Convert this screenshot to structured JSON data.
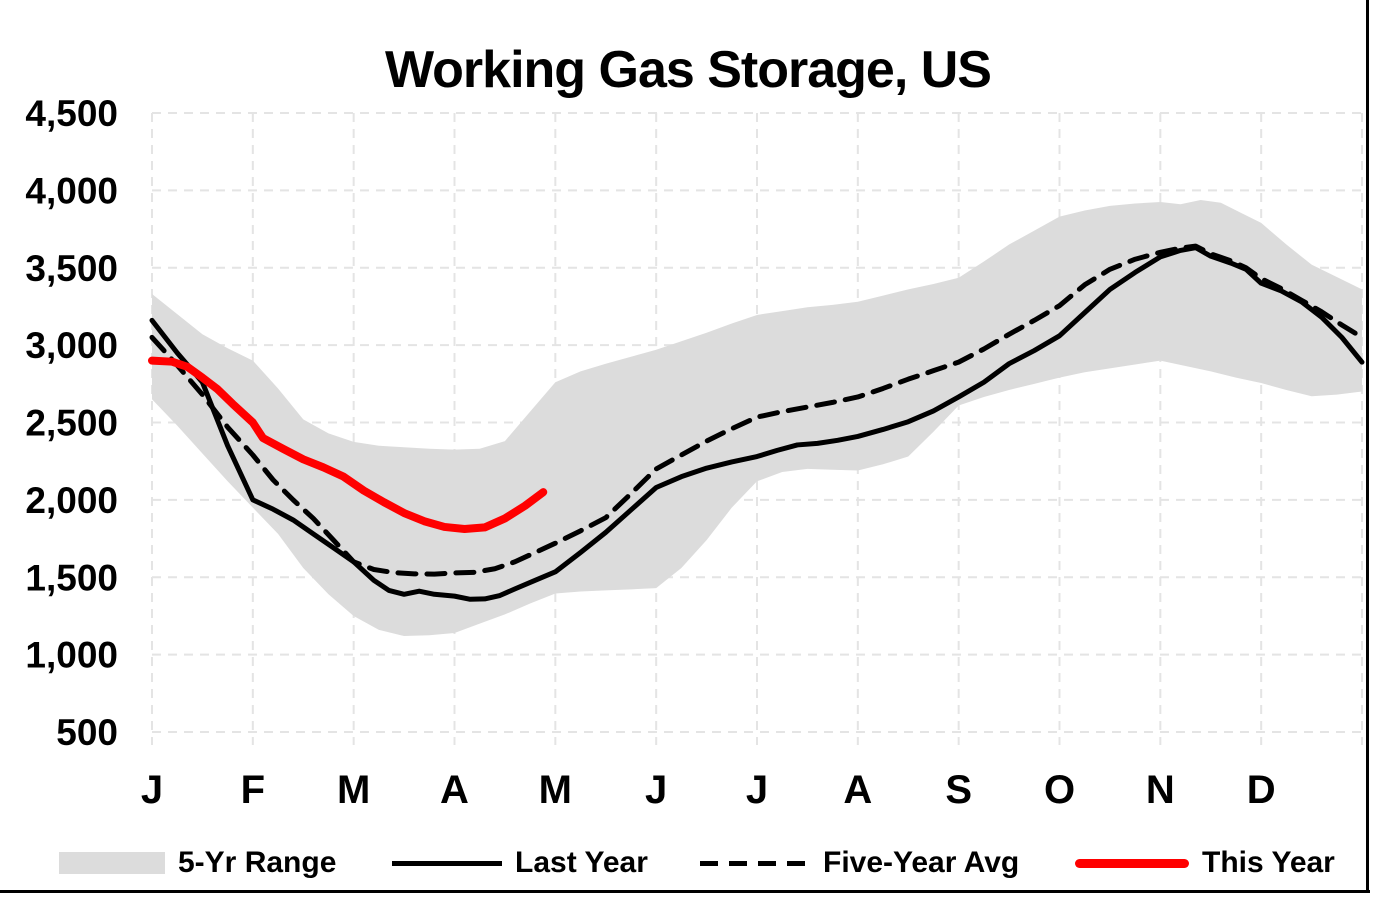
{
  "chart_data": {
    "type": "line",
    "title": "Working Gas Storage, US",
    "x_axis": {
      "months": [
        "J",
        "F",
        "M",
        "A",
        "M",
        "J",
        "J",
        "A",
        "S",
        "O",
        "N",
        "D"
      ],
      "gridlines": 13
    },
    "y_axis": {
      "min": 500,
      "max": 4500,
      "step": 500,
      "tick_labels": [
        "500",
        "1,000",
        "1,500",
        "2,000",
        "2,500",
        "3,000",
        "3,500",
        "4,000",
        "4,500"
      ]
    },
    "grid_style": "light-dashed",
    "legend": {
      "position": "bottom",
      "items": [
        {
          "label": "5-Yr Range",
          "swatch": "band",
          "color": "#dcdcdc"
        },
        {
          "label": "Last Year",
          "swatch": "solid-line",
          "color": "#000000"
        },
        {
          "label": "Five-Year Avg",
          "swatch": "dashed-line",
          "color": "#000000"
        },
        {
          "label": "This Year",
          "swatch": "thick-line",
          "color": "#ff0000"
        }
      ]
    },
    "series": [
      {
        "name": "5-Yr Range",
        "kind": "band",
        "color": "#dcdcdc",
        "upper": [
          [
            0,
            3330
          ],
          [
            0.25,
            3200
          ],
          [
            0.5,
            3070
          ],
          [
            0.75,
            2980
          ],
          [
            1,
            2900
          ],
          [
            1.25,
            2720
          ],
          [
            1.5,
            2520
          ],
          [
            1.75,
            2430
          ],
          [
            2,
            2375
          ],
          [
            2.25,
            2350
          ],
          [
            2.5,
            2340
          ],
          [
            2.75,
            2330
          ],
          [
            3,
            2325
          ],
          [
            3.25,
            2330
          ],
          [
            3.5,
            2380
          ],
          [
            3.75,
            2570
          ],
          [
            4,
            2760
          ],
          [
            4.25,
            2830
          ],
          [
            4.5,
            2880
          ],
          [
            4.75,
            2925
          ],
          [
            5,
            2970
          ],
          [
            5.25,
            3025
          ],
          [
            5.5,
            3080
          ],
          [
            5.75,
            3140
          ],
          [
            6,
            3195
          ],
          [
            6.25,
            3220
          ],
          [
            6.5,
            3245
          ],
          [
            6.75,
            3260
          ],
          [
            7,
            3280
          ],
          [
            7.25,
            3320
          ],
          [
            7.5,
            3360
          ],
          [
            7.75,
            3395
          ],
          [
            8,
            3435
          ],
          [
            8.25,
            3540
          ],
          [
            8.5,
            3650
          ],
          [
            8.75,
            3740
          ],
          [
            9,
            3830
          ],
          [
            9.25,
            3870
          ],
          [
            9.5,
            3900
          ],
          [
            9.75,
            3915
          ],
          [
            10,
            3925
          ],
          [
            10.2,
            3910
          ],
          [
            10.4,
            3938
          ],
          [
            10.6,
            3920
          ],
          [
            10.8,
            3855
          ],
          [
            11,
            3790
          ],
          [
            11.25,
            3650
          ],
          [
            11.5,
            3520
          ],
          [
            11.75,
            3440
          ],
          [
            12,
            3360
          ]
        ],
        "lower": [
          [
            0,
            2650
          ],
          [
            0.25,
            2480
          ],
          [
            0.5,
            2300
          ],
          [
            0.75,
            2120
          ],
          [
            1,
            1950
          ],
          [
            1.25,
            1780
          ],
          [
            1.5,
            1560
          ],
          [
            1.75,
            1390
          ],
          [
            2,
            1250
          ],
          [
            2.25,
            1160
          ],
          [
            2.5,
            1120
          ],
          [
            2.75,
            1125
          ],
          [
            3,
            1140
          ],
          [
            3.25,
            1200
          ],
          [
            3.5,
            1260
          ],
          [
            3.75,
            1330
          ],
          [
            4,
            1395
          ],
          [
            4.25,
            1408
          ],
          [
            4.5,
            1415
          ],
          [
            4.75,
            1422
          ],
          [
            5,
            1430
          ],
          [
            5.25,
            1560
          ],
          [
            5.5,
            1740
          ],
          [
            5.75,
            1950
          ],
          [
            6,
            2120
          ],
          [
            6.25,
            2180
          ],
          [
            6.5,
            2200
          ],
          [
            6.75,
            2195
          ],
          [
            7,
            2190
          ],
          [
            7.25,
            2230
          ],
          [
            7.5,
            2280
          ],
          [
            7.75,
            2440
          ],
          [
            8,
            2610
          ],
          [
            8.25,
            2665
          ],
          [
            8.5,
            2710
          ],
          [
            8.75,
            2750
          ],
          [
            9,
            2790
          ],
          [
            9.25,
            2825
          ],
          [
            9.5,
            2850
          ],
          [
            9.75,
            2875
          ],
          [
            10,
            2900
          ],
          [
            10.25,
            2865
          ],
          [
            10.5,
            2830
          ],
          [
            10.75,
            2790
          ],
          [
            11,
            2755
          ],
          [
            11.25,
            2710
          ],
          [
            11.5,
            2670
          ],
          [
            11.75,
            2680
          ],
          [
            12,
            2700
          ]
        ]
      },
      {
        "name": "Last Year",
        "kind": "line",
        "dash": "solid",
        "color": "#000000",
        "width": 5,
        "points": [
          [
            0,
            3160
          ],
          [
            0.25,
            2950
          ],
          [
            0.5,
            2760
          ],
          [
            0.75,
            2350
          ],
          [
            1,
            2000
          ],
          [
            1.2,
            1940
          ],
          [
            1.4,
            1870
          ],
          [
            1.6,
            1780
          ],
          [
            1.8,
            1690
          ],
          [
            2,
            1600
          ],
          [
            2.2,
            1480
          ],
          [
            2.35,
            1415
          ],
          [
            2.5,
            1390
          ],
          [
            2.65,
            1410
          ],
          [
            2.8,
            1390
          ],
          [
            3,
            1378
          ],
          [
            3.15,
            1358
          ],
          [
            3.3,
            1360
          ],
          [
            3.45,
            1382
          ],
          [
            3.6,
            1425
          ],
          [
            3.8,
            1480
          ],
          [
            4,
            1535
          ],
          [
            4.25,
            1660
          ],
          [
            4.5,
            1790
          ],
          [
            4.75,
            1935
          ],
          [
            5,
            2080
          ],
          [
            5.25,
            2150
          ],
          [
            5.5,
            2205
          ],
          [
            5.75,
            2245
          ],
          [
            6,
            2280
          ],
          [
            6.2,
            2320
          ],
          [
            6.4,
            2355
          ],
          [
            6.6,
            2365
          ],
          [
            6.8,
            2385
          ],
          [
            7,
            2410
          ],
          [
            7.25,
            2455
          ],
          [
            7.5,
            2505
          ],
          [
            7.75,
            2575
          ],
          [
            8,
            2665
          ],
          [
            8.25,
            2760
          ],
          [
            8.5,
            2880
          ],
          [
            8.75,
            2965
          ],
          [
            9,
            3060
          ],
          [
            9.25,
            3210
          ],
          [
            9.5,
            3360
          ],
          [
            9.75,
            3470
          ],
          [
            10,
            3570
          ],
          [
            10.2,
            3612
          ],
          [
            10.35,
            3630
          ],
          [
            10.5,
            3575
          ],
          [
            10.7,
            3530
          ],
          [
            10.85,
            3490
          ],
          [
            11,
            3400
          ],
          [
            11.2,
            3350
          ],
          [
            11.4,
            3280
          ],
          [
            11.6,
            3180
          ],
          [
            11.8,
            3050
          ],
          [
            12,
            2890
          ]
        ]
      },
      {
        "name": "Five-Year Avg",
        "kind": "line",
        "dash": "dashed",
        "color": "#000000",
        "width": 5,
        "points": [
          [
            0,
            3050
          ],
          [
            0.25,
            2870
          ],
          [
            0.5,
            2680
          ],
          [
            0.75,
            2470
          ],
          [
            1,
            2290
          ],
          [
            1.2,
            2130
          ],
          [
            1.4,
            2000
          ],
          [
            1.6,
            1880
          ],
          [
            1.8,
            1740
          ],
          [
            2,
            1600
          ],
          [
            2.2,
            1550
          ],
          [
            2.4,
            1530
          ],
          [
            2.6,
            1522
          ],
          [
            2.8,
            1520
          ],
          [
            3,
            1528
          ],
          [
            3.2,
            1532
          ],
          [
            3.4,
            1555
          ],
          [
            3.6,
            1600
          ],
          [
            3.8,
            1660
          ],
          [
            4,
            1720
          ],
          [
            4.25,
            1800
          ],
          [
            4.5,
            1885
          ],
          [
            4.75,
            2040
          ],
          [
            5,
            2200
          ],
          [
            5.25,
            2290
          ],
          [
            5.5,
            2380
          ],
          [
            5.75,
            2460
          ],
          [
            6,
            2535
          ],
          [
            6.25,
            2570
          ],
          [
            6.5,
            2600
          ],
          [
            6.75,
            2630
          ],
          [
            7,
            2665
          ],
          [
            7.25,
            2720
          ],
          [
            7.5,
            2780
          ],
          [
            7.75,
            2835
          ],
          [
            8,
            2890
          ],
          [
            8.25,
            2975
          ],
          [
            8.5,
            3070
          ],
          [
            8.75,
            3160
          ],
          [
            9,
            3255
          ],
          [
            9.25,
            3390
          ],
          [
            9.5,
            3490
          ],
          [
            9.75,
            3555
          ],
          [
            10,
            3600
          ],
          [
            10.2,
            3627
          ],
          [
            10.35,
            3640
          ],
          [
            10.5,
            3590
          ],
          [
            10.7,
            3545
          ],
          [
            10.85,
            3500
          ],
          [
            11,
            3430
          ],
          [
            11.2,
            3365
          ],
          [
            11.4,
            3290
          ],
          [
            11.6,
            3215
          ],
          [
            11.8,
            3130
          ],
          [
            12,
            3050
          ]
        ]
      },
      {
        "name": "This Year",
        "kind": "line",
        "dash": "solid",
        "color": "#ff0000",
        "width": 8,
        "points": [
          [
            0,
            2900
          ],
          [
            0.2,
            2893
          ],
          [
            0.35,
            2860
          ],
          [
            0.5,
            2790
          ],
          [
            0.65,
            2715
          ],
          [
            0.8,
            2620
          ],
          [
            1,
            2500
          ],
          [
            1.1,
            2400
          ],
          [
            1.3,
            2330
          ],
          [
            1.5,
            2262
          ],
          [
            1.7,
            2210
          ],
          [
            1.9,
            2150
          ],
          [
            2.1,
            2060
          ],
          [
            2.3,
            1985
          ],
          [
            2.5,
            1915
          ],
          [
            2.7,
            1862
          ],
          [
            2.9,
            1825
          ],
          [
            3.1,
            1812
          ],
          [
            3.3,
            1822
          ],
          [
            3.5,
            1880
          ],
          [
            3.7,
            1962
          ],
          [
            3.88,
            2050
          ]
        ]
      }
    ]
  }
}
